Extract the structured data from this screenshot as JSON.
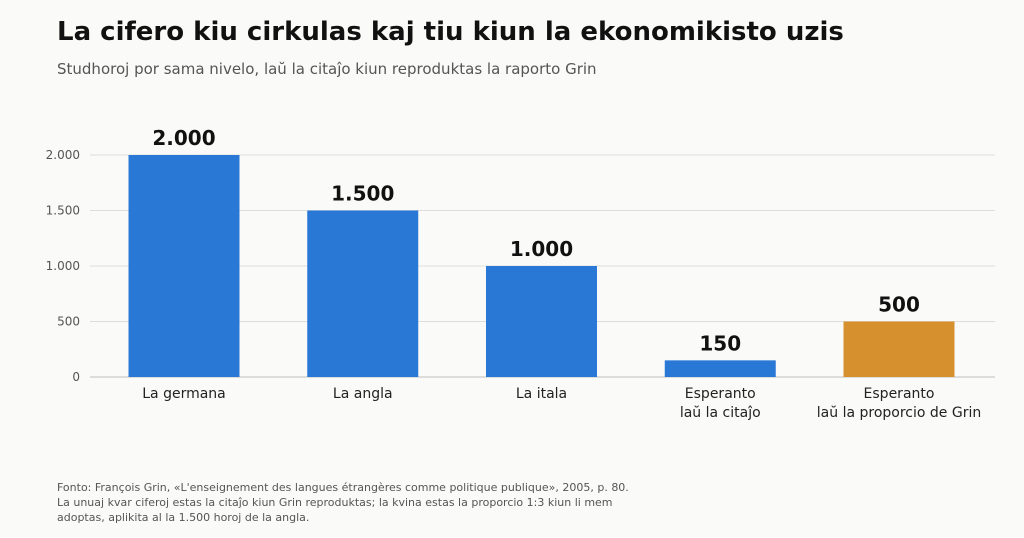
{
  "title": "La cifero kiu cirkulas kaj tiu kiun la ekonomikisto uzis",
  "subtitle": "Studhoroj por sama nivelo, laŭ la citaĵo kiun reproduktas la raporto Grin",
  "footnote": [
    "Fonto: François Grin, «L'enseignement des langues étrangères comme politique publique», 2005, p. 80.",
    "La unuaj kvar ciferoj estas la citaĵo kiun Grin reproduktas; la kvina estas la proporcio 1:3 kiun li mem",
    "adoptas, aplikita al la 1.500 horoj de la angla."
  ],
  "chart_data": {
    "type": "bar",
    "categories": [
      [
        "La germana"
      ],
      [
        "La angla"
      ],
      [
        "La itala"
      ],
      [
        "Esperanto",
        "laŭ la citaĵo"
      ],
      [
        "Esperanto",
        "laŭ la proporcio de Grin"
      ]
    ],
    "values": [
      2000,
      1500,
      1000,
      150,
      500
    ],
    "value_labels": [
      "2.000",
      "1.500",
      "1.000",
      "150",
      "500"
    ],
    "bar_colors": [
      "#2a78d6",
      "#2a78d6",
      "#2a78d6",
      "#2a78d6",
      "#d6902d"
    ],
    "ylim": [
      0,
      2000
    ],
    "yticks": [
      0,
      500,
      1000,
      1500,
      2000
    ],
    "ytick_labels": [
      "0",
      "500",
      "1.000",
      "1.500",
      "2.000"
    ],
    "grid": true,
    "xlabel": "",
    "ylabel": ""
  }
}
